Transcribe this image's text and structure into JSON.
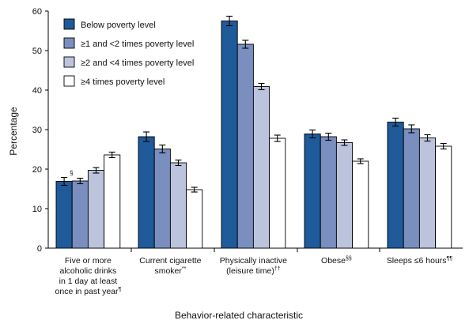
{
  "chart_data": {
    "type": "bar",
    "title": "",
    "xlabel": "Behavior-related characteristic",
    "ylabel": "Percentage",
    "ylim": [
      0,
      60
    ],
    "yticks": [
      0,
      10,
      20,
      30,
      40,
      50,
      60
    ],
    "grid": false,
    "legend_position": "top-left",
    "categories": [
      {
        "lines": [
          "Five or more",
          "alcoholic drinks",
          "in 1 day at least",
          "once in past year"
        ],
        "footnote": "¶"
      },
      {
        "lines": [
          "Current cigarette",
          "smoker"
        ],
        "footnote": "**"
      },
      {
        "lines": [
          "Physically inactive",
          "(leisure time)"
        ],
        "footnote": "††"
      },
      {
        "lines": [
          "Obese"
        ],
        "footnote": "§§"
      },
      {
        "lines": [
          "Sleeps ≤6 hours"
        ],
        "footnote": "¶¶"
      }
    ],
    "series": [
      {
        "name": "Below poverty level",
        "color": "#1f5a9a",
        "values": [
          16.9,
          28.2,
          57.5,
          28.9,
          31.9
        ],
        "errors": [
          1.0,
          1.2,
          1.2,
          1.0,
          1.0
        ]
      },
      {
        "name": "≥1 and <2 times poverty level",
        "color": "#7a8fc0",
        "values": [
          17.0,
          25.1,
          51.6,
          28.2,
          30.2
        ],
        "errors": [
          0.7,
          1.0,
          1.0,
          0.9,
          1.0
        ]
      },
      {
        "name": "≥2 and <4 times poverty level",
        "color": "#bcc3dd",
        "values": [
          19.7,
          21.6,
          40.9,
          26.7,
          27.9
        ],
        "errors": [
          0.7,
          0.7,
          0.8,
          0.7,
          0.8
        ]
      },
      {
        "name": "≥4 times poverty level",
        "color": "#ffffff",
        "values": [
          23.6,
          14.8,
          27.8,
          22.0,
          25.8
        ],
        "errors": [
          0.7,
          0.6,
          0.8,
          0.6,
          0.7
        ]
      }
    ],
    "annotations": [
      {
        "text": "§",
        "category_index": 0,
        "series_index": 0
      }
    ]
  }
}
